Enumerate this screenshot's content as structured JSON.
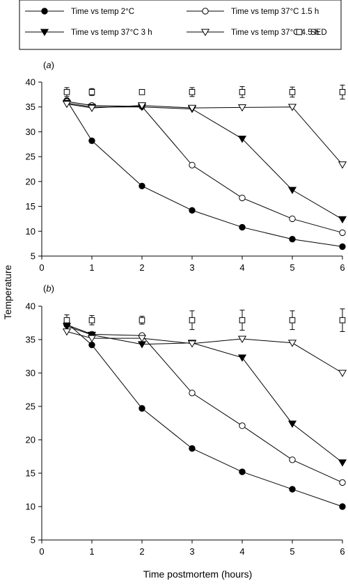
{
  "legend": {
    "entries": [
      {
        "label": "Time vs temp 2°C",
        "marker": "filled-circle"
      },
      {
        "label": "Time vs temp 37°C 1.5 h",
        "marker": "open-circle"
      },
      {
        "label": "Time vs temp 37°C 3 h",
        "marker": "filled-triangle-down"
      },
      {
        "label": "Time vs temp 37°C 4.5 h",
        "marker": "open-triangle-down"
      },
      {
        "label": "SED",
        "marker": "open-square"
      }
    ]
  },
  "chart_data": [
    {
      "type": "line",
      "panel_label": "(a)",
      "xlabel": "Time postmortem (hours)",
      "ylabel": "Temperature",
      "xlim": [
        0,
        6
      ],
      "ylim": [
        5,
        40
      ],
      "xticks": [
        0,
        1,
        2,
        3,
        4,
        5,
        6
      ],
      "yticks": [
        5,
        10,
        15,
        20,
        25,
        30,
        35,
        40
      ],
      "grid": false,
      "legend_position": "top",
      "series": [
        {
          "name": "Time vs temp 2°C",
          "x": [
            0.5,
            1,
            2,
            3,
            4,
            5,
            6
          ],
          "y": [
            36.3,
            28.2,
            19.1,
            14.2,
            10.8,
            8.4,
            6.9
          ]
        },
        {
          "name": "Time vs temp 37°C 1.5 h",
          "x": [
            0.5,
            1,
            2,
            3,
            4,
            5,
            6
          ],
          "y": [
            36.1,
            35.3,
            35.1,
            23.3,
            16.7,
            12.5,
            9.7
          ]
        },
        {
          "name": "Time vs temp 37°C 3 h",
          "x": [
            0.5,
            1,
            2,
            3,
            4,
            5,
            6
          ],
          "y": [
            35.8,
            35.0,
            35.0,
            34.6,
            28.6,
            18.3,
            12.4
          ]
        },
        {
          "name": "Time vs temp 37°C 4.5 h",
          "x": [
            0.5,
            1,
            2,
            3,
            4,
            5,
            6
          ],
          "y": [
            35.6,
            34.8,
            35.3,
            34.8,
            34.9,
            35.0,
            23.4
          ]
        }
      ],
      "sed": {
        "name": "SED",
        "x": [
          0.5,
          1,
          2,
          3,
          4,
          5,
          6
        ],
        "y": [
          38.0,
          38.0,
          38.0,
          38.0,
          38.0,
          38.0,
          38.0
        ],
        "error": [
          0.9,
          0.7,
          0.4,
          0.9,
          1.1,
          1.0,
          1.4
        ]
      }
    },
    {
      "type": "line",
      "panel_label": "(b)",
      "xlabel": "Time postmortem (hours)",
      "ylabel": "Temperature",
      "xlim": [
        0,
        6
      ],
      "ylim": [
        5,
        40
      ],
      "xticks": [
        0,
        1,
        2,
        3,
        4,
        5,
        6
      ],
      "yticks": [
        5,
        10,
        15,
        20,
        25,
        30,
        35,
        40
      ],
      "grid": false,
      "legend_position": "top",
      "series": [
        {
          "name": "Time vs temp 2°C",
          "x": [
            0.5,
            1,
            2,
            3,
            4,
            5,
            6
          ],
          "y": [
            37.5,
            34.2,
            24.7,
            18.7,
            15.2,
            12.6,
            10.0
          ]
        },
        {
          "name": "Time vs temp 37°C 1.5 h",
          "x": [
            0.5,
            1,
            2,
            3,
            4,
            5,
            6
          ],
          "y": [
            37.2,
            35.8,
            35.6,
            27.0,
            22.1,
            17.0,
            13.6
          ]
        },
        {
          "name": "Time vs temp 37°C 3 h",
          "x": [
            0.5,
            1,
            2,
            3,
            4,
            5,
            6
          ],
          "y": [
            37.0,
            35.7,
            34.3,
            34.5,
            32.3,
            22.4,
            16.6
          ]
        },
        {
          "name": "Time vs temp 37°C 4.5 h",
          "x": [
            0.5,
            1,
            2,
            3,
            4,
            5,
            6
          ],
          "y": [
            36.2,
            35.2,
            35.2,
            34.4,
            35.1,
            34.5,
            30.0
          ]
        }
      ],
      "sed": {
        "name": "SED",
        "x": [
          0.5,
          1,
          2,
          3,
          4,
          5,
          6
        ],
        "y": [
          37.9,
          37.9,
          37.9,
          37.9,
          37.9,
          37.9,
          37.9
        ],
        "error": [
          0.8,
          0.7,
          0.6,
          1.4,
          1.5,
          1.4,
          1.7
        ]
      }
    }
  ]
}
